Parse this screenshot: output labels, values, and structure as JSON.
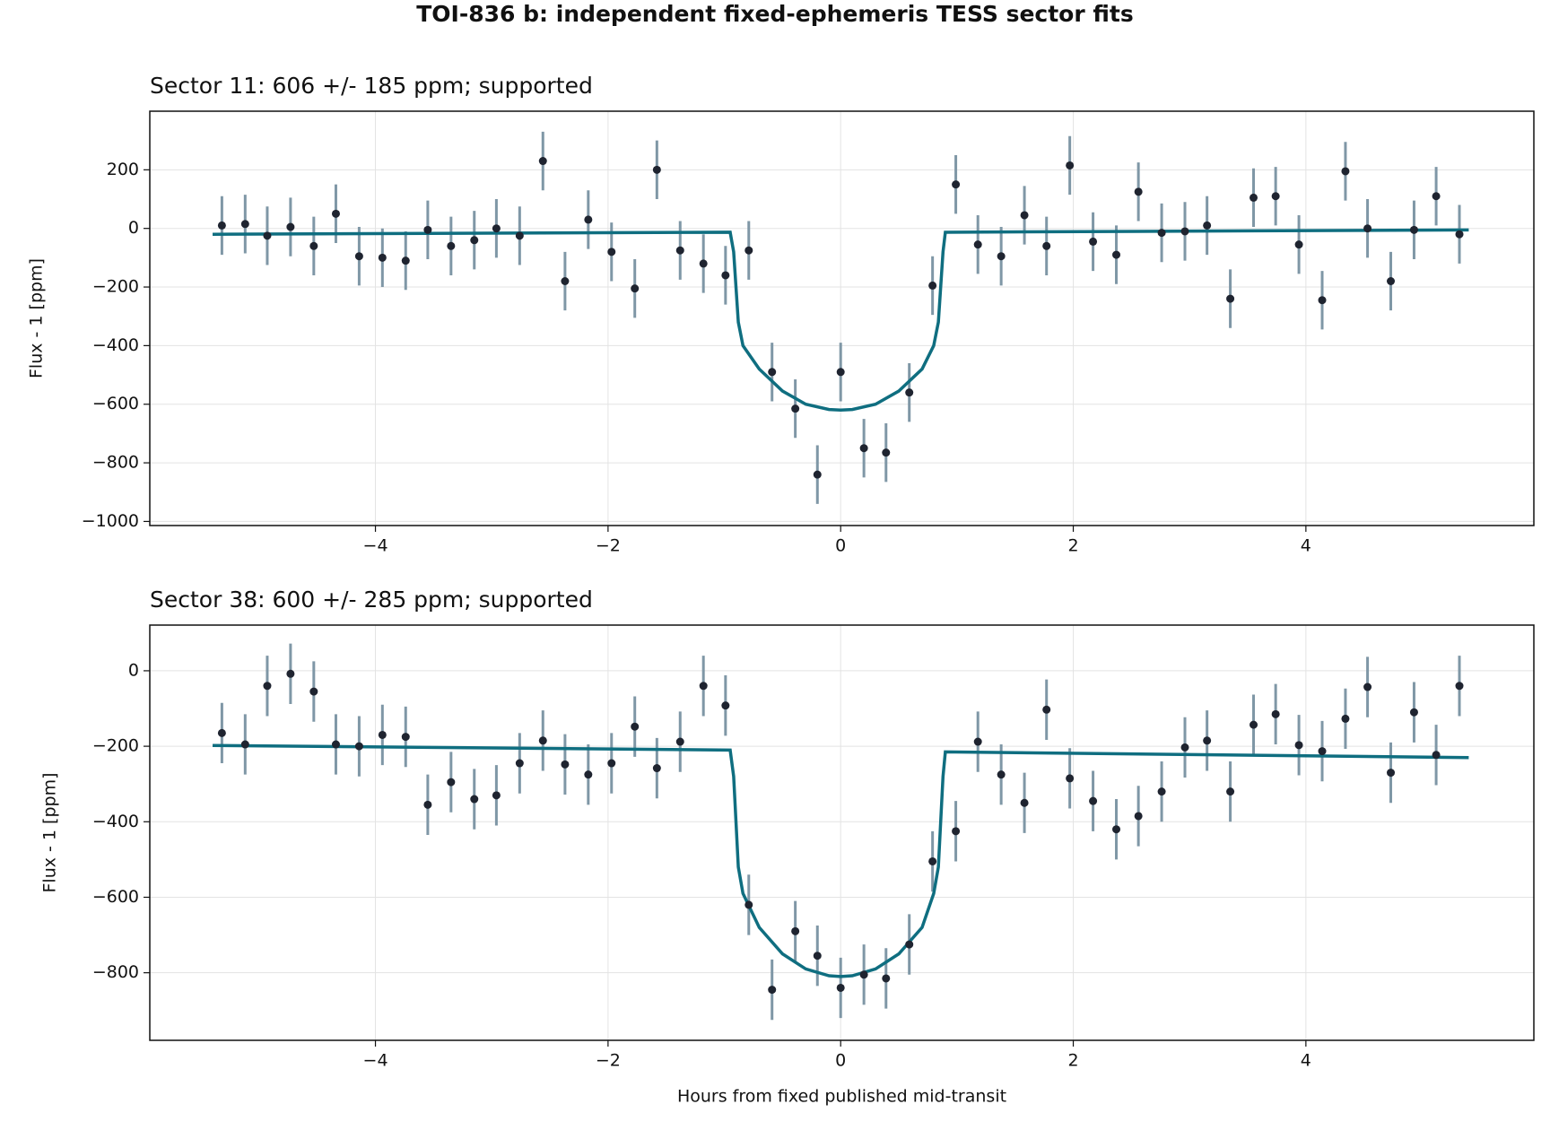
{
  "title": "TOI-836 b: independent fixed-ephemeris TESS sector fits",
  "chart_data": [
    {
      "type": "scatter",
      "title": "Sector 11: 606 +/- 185 ppm; supported",
      "ylabel": "Flux - 1 [ppm]",
      "xlim": [
        -5.94,
        5.96
      ],
      "xticks": [
        {
          "value": -4,
          "label": "−4"
        },
        {
          "value": -2,
          "label": "−2"
        },
        0,
        2,
        4
      ],
      "ylim": [
        -1014,
        400
      ],
      "yticks": [
        {
          "value": -1000,
          "label": "−1000"
        },
        {
          "value": -800,
          "label": "−800"
        },
        {
          "value": -600,
          "label": "−600"
        },
        {
          "value": -400,
          "label": "−400"
        },
        {
          "value": -200,
          "label": "−200"
        },
        0,
        200
      ],
      "grid": true,
      "series": [
        {
          "type": "errorbar",
          "color": "#1f2430",
          "err_color": "#7f97a6",
          "yerr": 100,
          "x": [
            -5.32,
            -5.12,
            -4.93,
            -4.73,
            -4.53,
            -4.34,
            -4.14,
            -3.94,
            -3.74,
            -3.55,
            -3.35,
            -3.15,
            -2.96,
            -2.76,
            -2.56,
            -2.37,
            -2.17,
            -1.97,
            -1.77,
            -1.58,
            -1.38,
            -1.18,
            -0.99,
            -0.79,
            -0.59,
            -0.39,
            -0.2,
            0,
            0.2,
            0.39,
            0.59,
            0.79,
            0.99,
            1.18,
            1.38,
            1.58,
            1.77,
            1.97,
            2.17,
            2.37,
            2.56,
            2.76,
            2.96,
            3.15,
            3.35,
            3.55,
            3.74,
            3.94,
            4.14,
            4.34,
            4.53,
            4.73,
            4.93,
            5.12,
            5.32
          ],
          "values": [
            10,
            15,
            -25,
            5,
            -60,
            50,
            -95,
            -100,
            -110,
            -5,
            -60,
            -40,
            0,
            -25,
            230,
            -180,
            30,
            -80,
            -205,
            200,
            -75,
            -120,
            -160,
            -75,
            -490,
            -615,
            -840,
            -490,
            -750,
            -765,
            -560,
            -195,
            150,
            -55,
            -95,
            45,
            -60,
            215,
            -45,
            -90,
            125,
            -15,
            -10,
            10,
            -240,
            105,
            110,
            -55,
            -245,
            195,
            0,
            -180,
            -5,
            110,
            -20
          ]
        },
        {
          "type": "line",
          "color": "#0f6e80",
          "x": [
            -5.4,
            -0.95,
            -0.92,
            -0.88,
            -0.84,
            -0.7,
            -0.5,
            -0.3,
            -0.1,
            0,
            0.1,
            0.3,
            0.5,
            0.7,
            0.8,
            0.84,
            0.88,
            0.9,
            5.4
          ],
          "values": [
            -20,
            -13,
            -80,
            -320,
            -400,
            -480,
            -555,
            -600,
            -618,
            -620,
            -618,
            -600,
            -555,
            -480,
            -400,
            -320,
            -80,
            -13,
            -5
          ]
        }
      ]
    },
    {
      "type": "scatter",
      "title": "Sector 38: 600 +/- 285 ppm; supported",
      "ylabel": "Flux - 1 [ppm]",
      "xlabel": "Hours from fixed published mid-transit",
      "xlim": [
        -5.94,
        5.96
      ],
      "xticks": [
        {
          "value": -4,
          "label": "−4"
        },
        {
          "value": -2,
          "label": "−2"
        },
        0,
        2,
        4
      ],
      "ylim": [
        -979,
        121
      ],
      "yticks": [
        {
          "value": -800,
          "label": "−800"
        },
        {
          "value": -600,
          "label": "−600"
        },
        {
          "value": -400,
          "label": "−400"
        },
        {
          "value": -200,
          "label": "−200"
        },
        0
      ],
      "grid": true,
      "series": [
        {
          "type": "errorbar",
          "color": "#1f2430",
          "err_color": "#7f97a6",
          "yerr": 80,
          "x": [
            -5.32,
            -5.12,
            -4.93,
            -4.73,
            -4.53,
            -4.34,
            -4.14,
            -3.94,
            -3.74,
            -3.55,
            -3.35,
            -3.15,
            -2.96,
            -2.76,
            -2.56,
            -2.37,
            -2.17,
            -1.97,
            -1.77,
            -1.58,
            -1.38,
            -1.18,
            -0.99,
            -0.79,
            -0.59,
            -0.39,
            -0.2,
            0,
            0.2,
            0.39,
            0.59,
            0.79,
            0.99,
            1.18,
            1.38,
            1.58,
            1.77,
            1.97,
            2.17,
            2.37,
            2.56,
            2.76,
            2.96,
            3.15,
            3.35,
            3.55,
            3.74,
            3.94,
            4.14,
            4.34,
            4.53,
            4.73,
            4.93,
            5.12,
            5.32
          ],
          "values": [
            -165,
            -195,
            -40,
            -8,
            -55,
            -195,
            -200,
            -170,
            -175,
            -355,
            -295,
            -340,
            -330,
            -245,
            -185,
            -248,
            -275,
            -245,
            -148,
            -258,
            -188,
            -40,
            -92,
            -620,
            -845,
            -690,
            -755,
            -840,
            -805,
            -815,
            -725,
            -505,
            -425,
            -188,
            -275,
            -350,
            -103,
            -285,
            -345,
            -420,
            -385,
            -320,
            -203,
            -185,
            -320,
            -143,
            -115,
            -197,
            -213,
            -127,
            -43,
            -270,
            -110,
            -223,
            -40
          ]
        },
        {
          "type": "line",
          "color": "#0f6e80",
          "x": [
            -5.4,
            -0.95,
            -0.92,
            -0.88,
            -0.84,
            -0.7,
            -0.5,
            -0.3,
            -0.1,
            0,
            0.1,
            0.3,
            0.5,
            0.7,
            0.8,
            0.84,
            0.88,
            0.9,
            5.4
          ],
          "values": [
            -198,
            -210,
            -280,
            -520,
            -590,
            -680,
            -750,
            -790,
            -808,
            -810,
            -808,
            -790,
            -750,
            -680,
            -590,
            -520,
            -280,
            -215,
            -230
          ]
        }
      ]
    }
  ]
}
